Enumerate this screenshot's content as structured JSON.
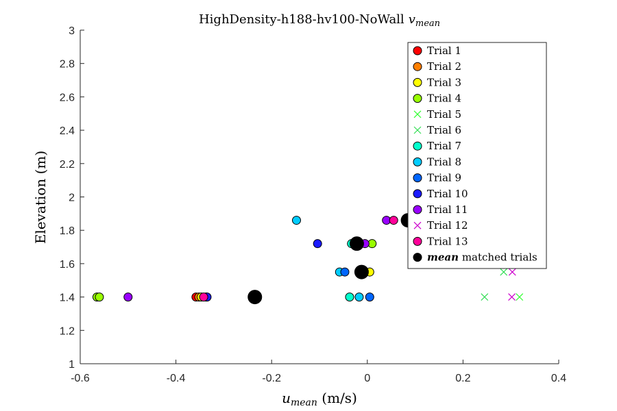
{
  "chart_data": {
    "type": "scatter",
    "title": "HighDensity-h188-hv100-NoWall",
    "title_math": "v",
    "title_math_sub": "mean",
    "xlabel_math": "u",
    "xlabel_math_sub": "mean",
    "xlabel": " (m/s)",
    "ylabel": "Elevation (m)",
    "xlim": [
      -0.6,
      0.4
    ],
    "ylim": [
      1,
      3
    ],
    "xticks": [
      "-0.6",
      "-0.4",
      "-0.2",
      "0",
      "0.2",
      "0.4"
    ],
    "yticks": [
      "1",
      "1.2",
      "1.4",
      "1.6",
      "1.8",
      "2",
      "2.2",
      "2.4",
      "2.6",
      "2.8",
      "3"
    ],
    "xtick_values": [
      -0.6,
      -0.4,
      -0.2,
      0,
      0.2,
      0.4
    ],
    "ytick_values": [
      1,
      1.2,
      1.4,
      1.6,
      1.8,
      2,
      2.2,
      2.4,
      2.6,
      2.8,
      3
    ],
    "grid": false,
    "legend_placement": "top-right",
    "series": [
      {
        "name": "Trial 1",
        "marker": "circle",
        "color": "#ff0000",
        "points": [
          [
            -0.358,
            1.4
          ]
        ]
      },
      {
        "name": "Trial 2",
        "marker": "circle",
        "color": "#ff7f00",
        "points": [
          [
            -0.352,
            1.4
          ]
        ]
      },
      {
        "name": "Trial 3",
        "marker": "circle",
        "color": "#ffff00",
        "points": [
          [
            -0.347,
            1.4
          ],
          [
            0.005,
            1.55
          ]
        ]
      },
      {
        "name": "Trial 4",
        "marker": "circle",
        "color": "#99ff00",
        "points": [
          [
            -0.565,
            1.4
          ],
          [
            -0.56,
            1.4
          ],
          [
            0.01,
            1.72
          ]
        ]
      },
      {
        "name": "Trial 5",
        "marker": "x",
        "color": "#33ff33",
        "points": [
          [
            0.318,
            1.4
          ]
        ]
      },
      {
        "name": "Trial 6",
        "marker": "x",
        "color": "#33dd55",
        "points": [
          [
            0.245,
            1.4
          ],
          [
            0.285,
            1.55
          ]
        ]
      },
      {
        "name": "Trial 7",
        "marker": "circle",
        "color": "#00ffcc",
        "points": [
          [
            -0.037,
            1.4
          ],
          [
            -0.033,
            1.72
          ]
        ]
      },
      {
        "name": "Trial 8",
        "marker": "circle",
        "color": "#00ccff",
        "points": [
          [
            -0.148,
            1.86
          ],
          [
            -0.058,
            1.55
          ],
          [
            -0.017,
            1.4
          ]
        ]
      },
      {
        "name": "Trial 9",
        "marker": "circle",
        "color": "#0066ff",
        "points": [
          [
            -0.047,
            1.55
          ],
          [
            -0.337,
            1.4
          ],
          [
            0.005,
            1.4
          ]
        ]
      },
      {
        "name": "Trial 10",
        "marker": "circle",
        "color": "#1a1aff",
        "points": [
          [
            -0.104,
            1.72
          ],
          [
            -0.335,
            1.4
          ]
        ]
      },
      {
        "name": "Trial 11",
        "marker": "circle",
        "color": "#9900ff",
        "points": [
          [
            -0.5,
            1.4
          ],
          [
            0.04,
            1.86
          ],
          [
            -0.005,
            1.72
          ]
        ]
      },
      {
        "name": "Trial 12",
        "marker": "x",
        "color": "#cc00cc",
        "points": [
          [
            0.302,
            1.4
          ],
          [
            0.303,
            1.55
          ]
        ]
      },
      {
        "name": "Trial 13",
        "marker": "circle",
        "color": "#ff0099",
        "points": [
          [
            -0.342,
            1.4
          ],
          [
            0.055,
            1.86
          ]
        ]
      },
      {
        "name": "mean matched trials",
        "name_math": "mean",
        "name_rest": " matched trials",
        "marker": "circle-large",
        "color": "#000000",
        "points": [
          [
            -0.235,
            1.4
          ],
          [
            -0.012,
            1.55
          ],
          [
            -0.022,
            1.72
          ],
          [
            0.085,
            1.86
          ]
        ]
      }
    ]
  }
}
